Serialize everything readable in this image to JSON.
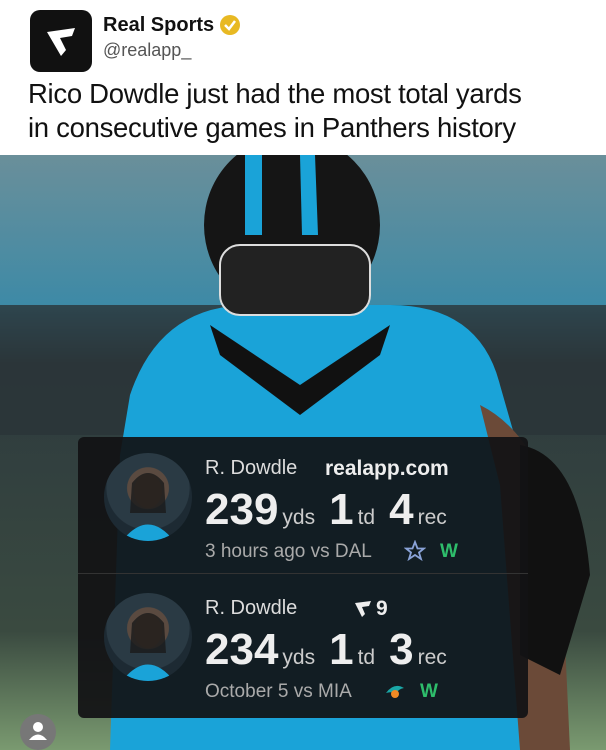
{
  "header": {
    "account_name": "Real Sports",
    "handle": "@realapp_",
    "headline_lines": [
      "Rico Dowdle just had the most total yards",
      "in consecutive games in Panthers history"
    ]
  },
  "card": {
    "rows": [
      {
        "player": "R. Dowdle",
        "tag": "realapp.com",
        "stats": [
          {
            "value": 239,
            "unit": "yds"
          },
          {
            "value": 1,
            "unit": "td"
          },
          {
            "value": 4,
            "unit": "rec"
          }
        ],
        "context": "3 hours ago vs DAL",
        "result": "W"
      },
      {
        "player": "R. Dowdle",
        "tag": "9",
        "stats": [
          {
            "value": 234,
            "unit": "yds"
          },
          {
            "value": 1,
            "unit": "td"
          },
          {
            "value": 3,
            "unit": "rec"
          }
        ],
        "context": "October 5 vs MIA",
        "result": "W"
      }
    ]
  }
}
